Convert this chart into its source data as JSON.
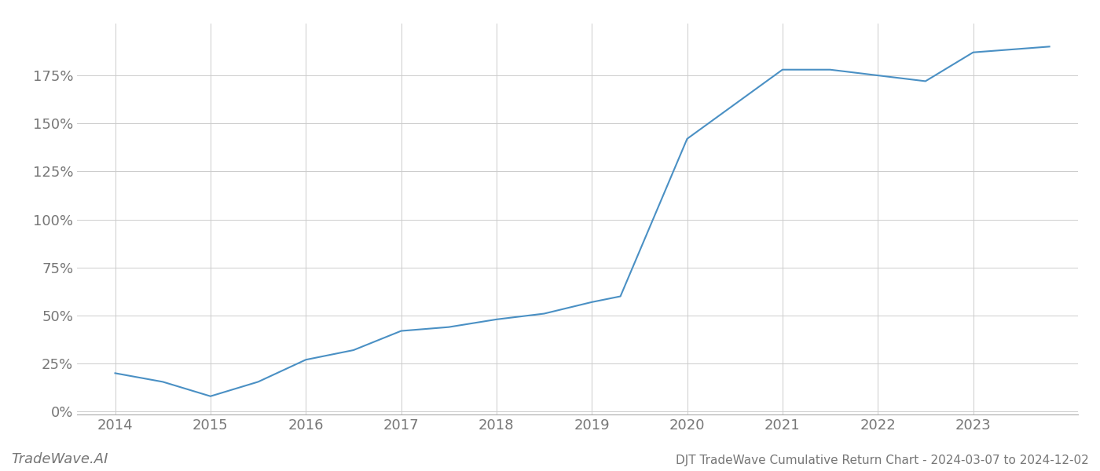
{
  "title": "DJT TradeWave Cumulative Return Chart - 2024-03-07 to 2024-12-02",
  "watermark": "TradeWave.AI",
  "line_color": "#4a90c4",
  "background_color": "#ffffff",
  "grid_color": "#cccccc",
  "x_values": [
    2014.0,
    2014.5,
    2015.0,
    2015.5,
    2016.0,
    2016.5,
    2017.0,
    2017.5,
    2018.0,
    2018.5,
    2019.0,
    2019.3,
    2020.0,
    2020.5,
    2021.0,
    2021.5,
    2022.0,
    2022.5,
    2023.0,
    2023.8
  ],
  "y_values": [
    0.2,
    0.155,
    0.08,
    0.155,
    0.27,
    0.32,
    0.42,
    0.44,
    0.48,
    0.51,
    0.57,
    0.6,
    1.42,
    1.6,
    1.78,
    1.78,
    1.75,
    1.72,
    1.87,
    1.9
  ],
  "xlim": [
    2013.6,
    2024.1
  ],
  "ylim": [
    -0.015,
    2.02
  ],
  "yticks": [
    0.0,
    0.25,
    0.5,
    0.75,
    1.0,
    1.25,
    1.5,
    1.75
  ],
  "xticks": [
    2014,
    2015,
    2016,
    2017,
    2018,
    2019,
    2020,
    2021,
    2022,
    2023
  ],
  "line_width": 1.5,
  "title_fontsize": 11,
  "tick_fontsize": 13,
  "watermark_fontsize": 13,
  "axis_color": "#aaaaaa",
  "tick_label_color": "#777777"
}
